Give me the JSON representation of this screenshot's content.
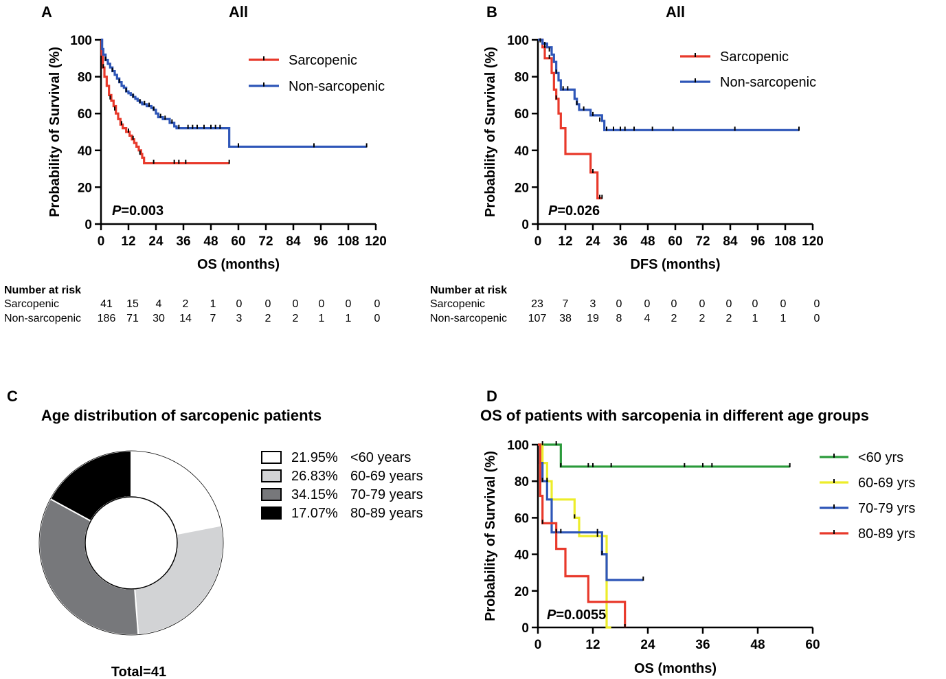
{
  "colors": {
    "red": "#e8392b",
    "blue": "#2e56b8",
    "green": "#2a9a3a",
    "yellow": "#eded2a",
    "black": "#000000"
  },
  "chart_data": [
    {
      "panel": "A",
      "type": "line",
      "kind": "kaplan-meier",
      "title": "All",
      "xlabel": "OS (months)",
      "ylabel": "Probability of Survival (%)",
      "xlim": [
        0,
        120
      ],
      "ylim": [
        0,
        100
      ],
      "xticks": [
        "0",
        "12",
        "24",
        "36",
        "48",
        "60",
        "72",
        "84",
        "96",
        "108",
        "120"
      ],
      "yticks": [
        "0",
        "20",
        "40",
        "60",
        "80",
        "100"
      ],
      "pvalue_prefix": "P",
      "pvalue_rest": "=0.003",
      "legend_position": "top-right",
      "series": [
        {
          "name": "Sarcopenic",
          "color": "#e8392b",
          "steps": [
            [
              0,
              100
            ],
            [
              0.3,
              92
            ],
            [
              0.8,
              85
            ],
            [
              1.5,
              80
            ],
            [
              2.5,
              75
            ],
            [
              3.5,
              70
            ],
            [
              4.5,
              67
            ],
            [
              5.5,
              64
            ],
            [
              6.5,
              60
            ],
            [
              7.5,
              57
            ],
            [
              8.5,
              54
            ],
            [
              9.5,
              52
            ],
            [
              11,
              50
            ],
            [
              12.5,
              48
            ],
            [
              13.5,
              46
            ],
            [
              14.5,
              44
            ],
            [
              15.5,
              42
            ],
            [
              16.5,
              40
            ],
            [
              17.5,
              38
            ],
            [
              18,
              36
            ],
            [
              18.8,
              33
            ],
            [
              56,
              33
            ]
          ],
          "censors": [
            [
              1,
              85
            ],
            [
              4,
              68
            ],
            [
              6,
              62
            ],
            [
              9,
              54
            ],
            [
              12,
              50
            ],
            [
              14,
              46
            ],
            [
              17,
              38
            ],
            [
              23,
              33
            ],
            [
              32,
              33
            ],
            [
              34,
              33
            ],
            [
              37,
              33
            ],
            [
              56,
              33
            ]
          ]
        },
        {
          "name": "Non-sarcopenic",
          "color": "#2e56b8",
          "steps": [
            [
              0,
              100
            ],
            [
              0.5,
              95
            ],
            [
              1,
              92
            ],
            [
              2,
              89
            ],
            [
              3,
              87
            ],
            [
              4,
              85
            ],
            [
              5,
              83
            ],
            [
              6,
              81
            ],
            [
              7,
              79
            ],
            [
              8,
              77
            ],
            [
              9,
              75
            ],
            [
              10,
              74
            ],
            [
              11,
              72
            ],
            [
              12,
              71
            ],
            [
              13,
              70
            ],
            [
              14,
              69
            ],
            [
              15,
              68
            ],
            [
              16,
              67
            ],
            [
              17,
              66
            ],
            [
              18,
              65
            ],
            [
              20,
              64
            ],
            [
              22,
              63
            ],
            [
              23,
              62
            ],
            [
              24,
              60
            ],
            [
              25,
              58
            ],
            [
              27,
              57
            ],
            [
              30,
              55
            ],
            [
              32,
              53
            ],
            [
              33,
              52
            ],
            [
              56,
              52
            ],
            [
              56,
              42
            ],
            [
              116,
              42
            ]
          ],
          "censors": [
            [
              2,
              89
            ],
            [
              5,
              83
            ],
            [
              8,
              77
            ],
            [
              11,
              72
            ],
            [
              14,
              69
            ],
            [
              17,
              66
            ],
            [
              19,
              65
            ],
            [
              21,
              64
            ],
            [
              23,
              62
            ],
            [
              26,
              58
            ],
            [
              28,
              57
            ],
            [
              31,
              55
            ],
            [
              34,
              52
            ],
            [
              38,
              52
            ],
            [
              40,
              52
            ],
            [
              42,
              52
            ],
            [
              45,
              52
            ],
            [
              48,
              52
            ],
            [
              50,
              52
            ],
            [
              52,
              52
            ],
            [
              60,
              42
            ],
            [
              93,
              42
            ],
            [
              116,
              42
            ]
          ]
        }
      ],
      "risk_table": {
        "title": "Number at risk",
        "rows": [
          {
            "label": "Sarcopenic",
            "values": [
              "41",
              "15",
              "4",
              "2",
              "1",
              "0",
              "0",
              "0",
              "0",
              "0",
              "0"
            ]
          },
          {
            "label": "Non-sarcopenic",
            "values": [
              "186",
              "71",
              "30",
              "14",
              "7",
              "3",
              "2",
              "2",
              "1",
              "1",
              "0"
            ]
          }
        ]
      }
    },
    {
      "panel": "B",
      "type": "line",
      "kind": "kaplan-meier",
      "title": "All",
      "xlabel": "DFS (months)",
      "ylabel": "Probability of Survival (%)",
      "xlim": [
        0,
        120
      ],
      "ylim": [
        0,
        100
      ],
      "xticks": [
        "0",
        "12",
        "24",
        "36",
        "48",
        "60",
        "72",
        "84",
        "96",
        "108",
        "120"
      ],
      "yticks": [
        "0",
        "20",
        "40",
        "60",
        "80",
        "100"
      ],
      "pvalue_prefix": "P",
      "pvalue_rest": "=0.026",
      "legend_position": "top-right",
      "series": [
        {
          "name": "Sarcopenic",
          "color": "#e8392b",
          "steps": [
            [
              0,
              100
            ],
            [
              2,
              96
            ],
            [
              3,
              90
            ],
            [
              6,
              82
            ],
            [
              7,
              73
            ],
            [
              8,
              68
            ],
            [
              9,
              60
            ],
            [
              10,
              52
            ],
            [
              12,
              38
            ],
            [
              23,
              38
            ],
            [
              23,
              28
            ],
            [
              26,
              28
            ],
            [
              26,
              14
            ],
            [
              28,
              14
            ]
          ],
          "censors": [
            [
              3,
              96
            ],
            [
              5,
              90
            ],
            [
              8,
              68
            ],
            [
              24,
              28
            ],
            [
              27,
              14
            ],
            [
              28,
              14
            ]
          ]
        },
        {
          "name": "Non-sarcopenic",
          "color": "#2e56b8",
          "steps": [
            [
              0,
              100
            ],
            [
              2,
              98
            ],
            [
              4,
              96
            ],
            [
              6,
              92
            ],
            [
              7,
              88
            ],
            [
              8,
              82
            ],
            [
              9,
              78
            ],
            [
              10,
              73
            ],
            [
              15,
              73
            ],
            [
              16,
              68
            ],
            [
              17,
              65
            ],
            [
              18,
              62
            ],
            [
              22,
              62
            ],
            [
              23,
              59
            ],
            [
              27,
              59
            ],
            [
              28,
              56
            ],
            [
              29,
              51
            ],
            [
              114,
              51
            ]
          ],
          "censors": [
            [
              1,
              99
            ],
            [
              3,
              97
            ],
            [
              5,
              94
            ],
            [
              8,
              82
            ],
            [
              11,
              73
            ],
            [
              13,
              73
            ],
            [
              17,
              65
            ],
            [
              20,
              62
            ],
            [
              24,
              59
            ],
            [
              27,
              56
            ],
            [
              30,
              51
            ],
            [
              33,
              51
            ],
            [
              36,
              51
            ],
            [
              38,
              51
            ],
            [
              42,
              51
            ],
            [
              50,
              51
            ],
            [
              59,
              51
            ],
            [
              86,
              51
            ],
            [
              114,
              51
            ]
          ]
        }
      ],
      "risk_table": {
        "title": "Number at risk",
        "rows": [
          {
            "label": "Sarcopenic",
            "values": [
              "23",
              "7",
              "3",
              "0",
              "0",
              "0",
              "0",
              "0",
              "0",
              "0",
              "0"
            ]
          },
          {
            "label": "Non-sarcopenic",
            "values": [
              "107",
              "38",
              "19",
              "8",
              "4",
              "2",
              "2",
              "2",
              "1",
              "1",
              "0"
            ]
          }
        ]
      }
    },
    {
      "panel": "C",
      "type": "pie",
      "variant": "donut",
      "title": "Age distribution of sarcopenic patients",
      "footer": "Total=41",
      "legend_position": "right",
      "slices": [
        {
          "pct_label": "21.95%",
          "label": "<60 years",
          "value": 21.95,
          "color": "#ffffff"
        },
        {
          "pct_label": "26.83%",
          "label": "60-69 years",
          "value": 26.83,
          "color": "#d2d3d5"
        },
        {
          "pct_label": "34.15%",
          "label": "70-79 years",
          "value": 34.15,
          "color": "#77787b"
        },
        {
          "pct_label": "17.07%",
          "label": "80-89 years",
          "value": 17.07,
          "color": "#000000"
        }
      ]
    },
    {
      "panel": "D",
      "type": "line",
      "kind": "kaplan-meier",
      "title": "OS of patients with sarcopenia in different age groups",
      "xlabel": "OS (months)",
      "ylabel": "Probability of Survival (%)",
      "xlim": [
        0,
        60
      ],
      "ylim": [
        0,
        100
      ],
      "xticks": [
        "0",
        "12",
        "24",
        "36",
        "48",
        "60"
      ],
      "yticks": [
        "0",
        "20",
        "40",
        "60",
        "80",
        "100"
      ],
      "pvalue_prefix": "P",
      "pvalue_rest": "=0.0055",
      "legend_position": "right",
      "series": [
        {
          "name": "<60 yrs",
          "color": "#2a9a3a",
          "steps": [
            [
              0,
              100
            ],
            [
              5,
              100
            ],
            [
              5,
              88
            ],
            [
              55,
              88
            ]
          ],
          "censors": [
            [
              1,
              100
            ],
            [
              4,
              100
            ],
            [
              5,
              88
            ],
            [
              11,
              88
            ],
            [
              12,
              88
            ],
            [
              16,
              88
            ],
            [
              32,
              88
            ],
            [
              36,
              88
            ],
            [
              38,
              88
            ],
            [
              55,
              88
            ]
          ]
        },
        {
          "name": "60-69 yrs",
          "color": "#eded2a",
          "steps": [
            [
              0,
              100
            ],
            [
              1,
              90
            ],
            [
              2,
              80
            ],
            [
              3,
              70
            ],
            [
              8,
              70
            ],
            [
              8,
              60
            ],
            [
              9,
              60
            ],
            [
              9,
              50
            ],
            [
              15,
              50
            ],
            [
              15,
              0
            ],
            [
              16,
              0
            ]
          ],
          "censors": [
            [
              2,
              80
            ],
            [
              8,
              60
            ],
            [
              13,
              50
            ]
          ]
        },
        {
          "name": "70-79 yrs",
          "color": "#2e56b8",
          "steps": [
            [
              0,
              100
            ],
            [
              0.5,
              90
            ],
            [
              1,
              80
            ],
            [
              2,
              70
            ],
            [
              3,
              61
            ],
            [
              3,
              52
            ],
            [
              14,
              52
            ],
            [
              14,
              40
            ],
            [
              15,
              40
            ],
            [
              15,
              26
            ],
            [
              23,
              26
            ]
          ],
          "censors": [
            [
              1,
              80
            ],
            [
              4,
              52
            ],
            [
              5,
              52
            ],
            [
              13,
              52
            ],
            [
              14,
              40
            ],
            [
              23,
              26
            ]
          ]
        },
        {
          "name": "80-89 yrs",
          "color": "#e8392b",
          "steps": [
            [
              0,
              100
            ],
            [
              0.5,
              72
            ],
            [
              1,
              57
            ],
            [
              4,
              57
            ],
            [
              4,
              43
            ],
            [
              6,
              43
            ],
            [
              6,
              28
            ],
            [
              11,
              28
            ],
            [
              11,
              14
            ],
            [
              19,
              14
            ],
            [
              19,
              0
            ]
          ],
          "censors": [
            [
              1,
              57
            ],
            [
              19,
              0
            ]
          ]
        }
      ]
    }
  ]
}
